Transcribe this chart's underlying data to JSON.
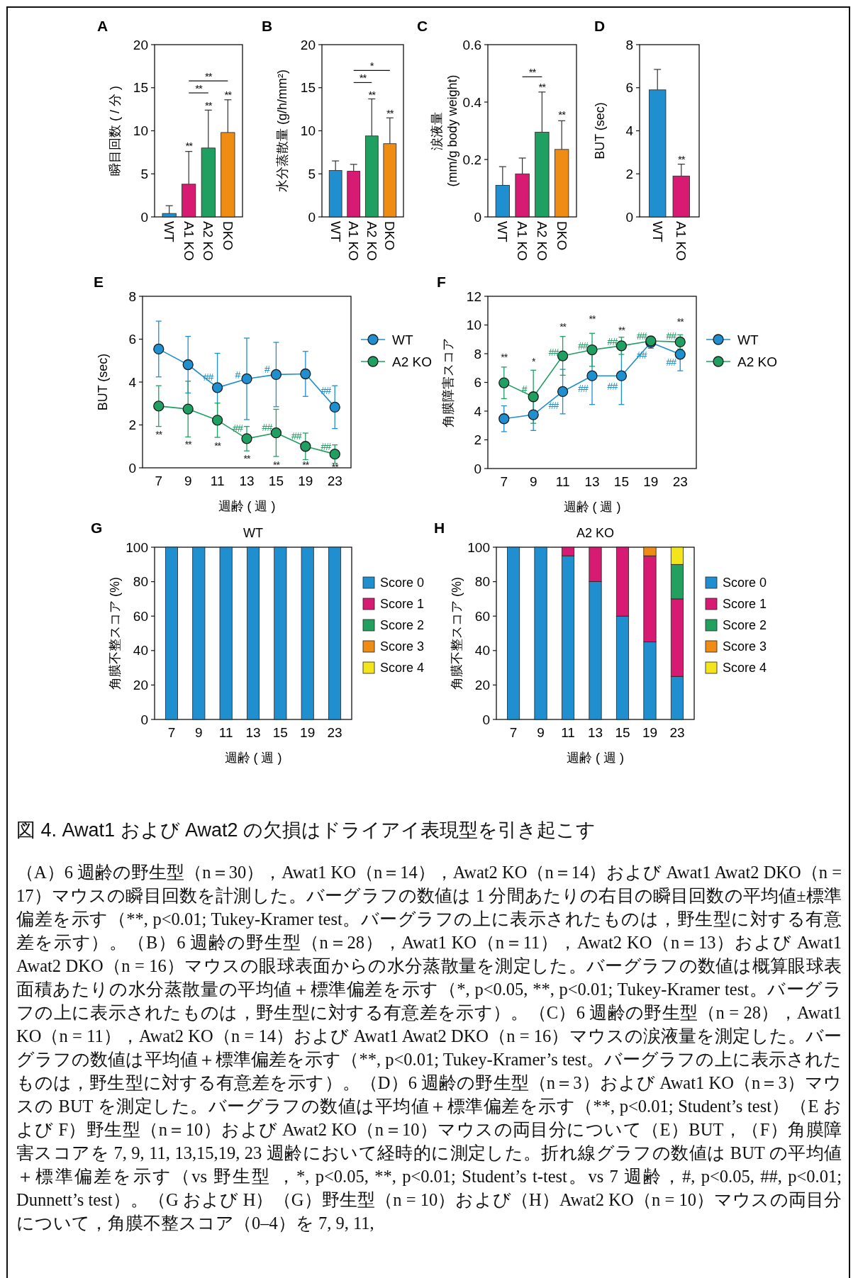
{
  "chart_data": [
    {
      "type": "bar",
      "title": "A",
      "ylabel": "瞬目回数 ( / 分 )",
      "categories": [
        "WT",
        "A1 KO",
        "A2 KO",
        "DKO"
      ],
      "values": [
        0.4,
        3.8,
        8.0,
        9.8
      ],
      "colors": [
        "#1f8fcf",
        "#d81b72",
        "#1fa060",
        "#ef8c14"
      ],
      "errors": [
        [
          0.4,
          1.3
        ],
        [
          3.8,
          7.6
        ],
        [
          8.0,
          12.4
        ],
        [
          9.8,
          13.6
        ]
      ],
      "ylim": [
        0,
        20
      ],
      "yticks": [
        0,
        5,
        10,
        15,
        20
      ],
      "annotations": [
        "**",
        "**",
        "**",
        "**",
        "**"
      ]
    },
    {
      "type": "bar",
      "title": "B",
      "ylabel": "水分蒸散量 (g/h/mm²)",
      "categories": [
        "WT",
        "A1 KO",
        "A2 KO",
        "DKO"
      ],
      "values": [
        5.4,
        5.3,
        9.4,
        8.5
      ],
      "colors": [
        "#1f8fcf",
        "#d81b72",
        "#1fa060",
        "#ef8c14"
      ],
      "errors": [
        [
          5.4,
          6.5
        ],
        [
          5.3,
          6.1
        ],
        [
          9.4,
          13.7
        ],
        [
          8.5,
          11.5
        ]
      ],
      "ylim": [
        0,
        20
      ],
      "yticks": [
        0,
        5,
        10,
        15,
        20
      ],
      "annotations": [
        "**",
        "**",
        "**",
        "*"
      ]
    },
    {
      "type": "bar",
      "title": "C",
      "ylabel": "涙液量\n(mm/g body weight)",
      "categories": [
        "WT",
        "A1 KO",
        "A2 KO",
        "DKO"
      ],
      "values": [
        0.11,
        0.15,
        0.295,
        0.235
      ],
      "colors": [
        "#1f8fcf",
        "#d81b72",
        "#1fa060",
        "#ef8c14"
      ],
      "errors": [
        [
          0.11,
          0.175
        ],
        [
          0.15,
          0.205
        ],
        [
          0.295,
          0.435
        ],
        [
          0.235,
          0.335
        ]
      ],
      "ylim": [
        0,
        0.6
      ],
      "yticks": [
        0,
        0.2,
        0.4,
        0.6
      ],
      "annotations": [
        "**",
        "**",
        "**"
      ]
    },
    {
      "type": "bar",
      "title": "D",
      "ylabel": "BUT (sec)",
      "categories": [
        "WT",
        "A1 KO"
      ],
      "values": [
        5.9,
        1.9
      ],
      "colors": [
        "#1f8fcf",
        "#d81b72"
      ],
      "errors": [
        [
          5.9,
          6.85
        ],
        [
          1.9,
          2.45
        ]
      ],
      "ylim": [
        0,
        8
      ],
      "yticks": [
        0,
        2,
        4,
        6,
        8
      ],
      "annotations": [
        "**"
      ]
    },
    {
      "type": "line",
      "title": "E",
      "xlabel": "週齢 ( 週 )",
      "ylabel": "BUT (sec)",
      "categories": [
        "7",
        "9",
        "11",
        "13",
        "15",
        "19",
        "23"
      ],
      "ylim": [
        0,
        8
      ],
      "yticks": [
        0,
        2,
        4,
        6,
        8
      ],
      "marker": "circle",
      "legend": "right",
      "series": [
        {
          "name": "WT",
          "color": "#1f8fcf",
          "values": [
            5.54,
            4.81,
            3.74,
            4.15,
            4.35,
            4.38,
            2.83
          ],
          "errors": [
            1.3,
            1.32,
            1.6,
            1.9,
            1.5,
            1.05,
            1.0
          ]
        },
        {
          "name": "A2 KO",
          "color": "#1fa060",
          "values": [
            2.88,
            2.74,
            2.22,
            1.36,
            1.63,
            1.0,
            0.64
          ],
          "errors": [
            0.95,
            1.3,
            0.8,
            0.57,
            1.1,
            0.62,
            0.43
          ]
        }
      ],
      "annotations": [
        "**",
        "**",
        "**",
        "**",
        "**",
        "**",
        "**",
        "##",
        "#",
        "#",
        "##",
        "##",
        "##",
        "##",
        "##"
      ]
    },
    {
      "type": "line",
      "title": "F",
      "xlabel": "週齢 ( 週 )",
      "ylabel": "角膜障害スコア",
      "categories": [
        "7",
        "9",
        "11",
        "13",
        "15",
        "19",
        "23"
      ],
      "ylim": [
        0,
        12
      ],
      "yticks": [
        0,
        2,
        4,
        6,
        8,
        10,
        12
      ],
      "marker": "circle",
      "legend": "right",
      "series": [
        {
          "name": "WT",
          "color": "#1f8fcf",
          "values": [
            3.47,
            3.75,
            5.36,
            6.46,
            6.46,
            8.78,
            7.96
          ],
          "errors": [
            0.9,
            1.1,
            1.55,
            2.0,
            2.0,
            0.4,
            1.15
          ]
        },
        {
          "name": "A2 KO",
          "color": "#1fa060",
          "values": [
            5.97,
            5.0,
            7.85,
            8.27,
            8.55,
            8.89,
            8.82
          ],
          "errors": [
            1.1,
            1.85,
            1.35,
            1.15,
            0.6,
            null,
            0.5
          ]
        }
      ],
      "annotations": [
        "**",
        "*",
        "**",
        "**",
        "**",
        "**",
        "#",
        "##",
        "##",
        "##",
        "##",
        "##",
        "##",
        "##",
        "##",
        "##",
        "##"
      ]
    },
    {
      "type": "bar",
      "stacked": true,
      "title": "G",
      "subtitle": "WT",
      "xlabel": "週齢 ( 週 )",
      "ylabel": "角膜不整スコア (%)",
      "categories": [
        "7",
        "9",
        "11",
        "13",
        "15",
        "19",
        "23"
      ],
      "ylim": [
        0,
        100
      ],
      "yticks": [
        0,
        20,
        40,
        60,
        80,
        100
      ],
      "legend": "right",
      "series": [
        {
          "name": "Score 0",
          "color": "#1f8fcf",
          "values": [
            100,
            100,
            100,
            100,
            100,
            100,
            100
          ]
        },
        {
          "name": "Score 1",
          "color": "#d81b72",
          "values": [
            0,
            0,
            0,
            0,
            0,
            0,
            0
          ]
        },
        {
          "name": "Score 2",
          "color": "#21a05f",
          "values": [
            0,
            0,
            0,
            0,
            0,
            0,
            0
          ]
        },
        {
          "name": "Score 3",
          "color": "#ef8c14",
          "values": [
            0,
            0,
            0,
            0,
            0,
            0,
            0
          ]
        },
        {
          "name": "Score 4",
          "color": "#f2e51c",
          "values": [
            0,
            0,
            0,
            0,
            0,
            0,
            0
          ]
        }
      ]
    },
    {
      "type": "bar",
      "stacked": true,
      "title": "H",
      "subtitle": "A2 KO",
      "xlabel": "週齢 ( 週 )",
      "ylabel": "角膜不整スコア (%)",
      "categories": [
        "7",
        "9",
        "11",
        "13",
        "15",
        "19",
        "23"
      ],
      "ylim": [
        0,
        100
      ],
      "yticks": [
        0,
        20,
        40,
        60,
        80,
        100
      ],
      "legend": "right",
      "series": [
        {
          "name": "Score 0",
          "color": "#1f8fcf",
          "values": [
            100,
            100,
            95,
            80,
            60,
            45,
            25
          ]
        },
        {
          "name": "Score 1",
          "color": "#d81b72",
          "values": [
            0,
            0,
            5,
            20,
            40,
            50,
            45
          ]
        },
        {
          "name": "Score 2",
          "color": "#21a05f",
          "values": [
            0,
            0,
            0,
            0,
            0,
            0,
            20
          ]
        },
        {
          "name": "Score 3",
          "color": "#ef8c14",
          "values": [
            0,
            0,
            0,
            0,
            0,
            5,
            0
          ]
        },
        {
          "name": "Score 4",
          "color": "#f2e51c",
          "values": [
            0,
            0,
            0,
            0,
            0,
            0,
            10
          ]
        }
      ]
    },
    {
      "type": "other",
      "title": "図 4. Awat1 および Awat2 の欠損はドライアイ表現型を引き起こす",
      "annotations": [
        "（A）6 週齢の野生型（n＝30），Awat1 KO（n＝14），Awat2 KO（n＝14）および Awat1 Awat2 DKO（n = 17）マウスの瞬目回数を計測した。バーグラフの数値は 1 分間あたりの右目の瞬目回数の平均値±標準偏差を示す（**, p<0.01; Tukey-Kramer test。バーグラフの上に表示されたものは，野生型に対する有意差を示す）。",
        "（B）6 週齢の野生型（n＝28），Awat1 KO（n＝11），Awat2 KO（n＝13）および Awat1 Awat2 DKO（n = 16）マウスの眼球表面からの水分蒸散量を測定した。バーグラフの数値は概算眼球表面積あたりの水分蒸散量の平均値＋標準偏差を示す（*, p<0.05, **, p<0.01; Tukey-Kramer test。バーグラフの上に表示されたものは，野生型に対する有意差を示す）。",
        "（C）6 週齢の野生型（n = 28），Awat1 KO（n = 11），Awat2 KO（n = 14）および Awat1 Awat2 DKO（n = 16）マウスの涙液量を測定した。バーグラフの数値は平均値＋標準偏差を示す（**, p<0.01; Tukey-Kramer’s test。バーグラフの上に表示されたものは，野生型に対する有意差を示す）。",
        "（D）6 週齢の野生型（n＝3）および Awat1 KO（n＝3）マウスの BUT を測定した。バーグラフの数値は平均値＋標準偏差を示す（**, p<0.01; Student’s test）",
        "（E および F）野生型（n＝10）および Awat2 KO（n＝10）マウスの両目分について（E）BUT，（F）角膜障害スコアを 7, 9, 11, 13,15,19, 23 週齢において経時的に測定した。折れ線グラフの数値は BUT の平均値＋標準偏差を示す（vs 野生型 ，*, p<0.05, **, p<0.01; Student’s t-test。vs 7 週齢，#, p<0.05, ##, p<0.01; Dunnett’s test）。",
        "（G および H）（G）野生型（n = 10）および（H）Awat2 KO（n = 10）マウスの両目分について，角膜不整スコア（0–4）を 7, 9, 11,"
      ]
    }
  ]
}
